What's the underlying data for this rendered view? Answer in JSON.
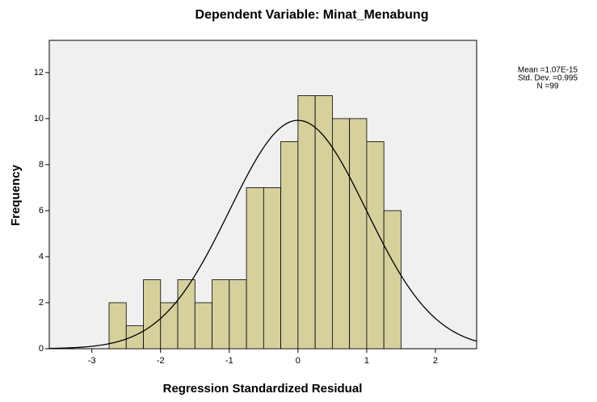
{
  "chart_data": {
    "type": "histogram",
    "title": "Dependent Variable: Minat_Menabung",
    "xlabel": "Regression Standardized Residual",
    "ylabel": "Frequency",
    "bins": [
      -2.75,
      -2.5,
      -2.25,
      -2.0,
      -1.75,
      -1.5,
      -1.25,
      -1.0,
      -0.75,
      -0.5,
      -0.25,
      0.0,
      0.25,
      0.5,
      0.75,
      1.0,
      1.25,
      1.5
    ],
    "values": [
      2,
      1,
      3,
      2,
      3,
      2,
      3,
      3,
      7,
      7,
      9,
      11,
      11,
      10,
      10,
      9,
      6
    ],
    "color": "#d6d09c",
    "xlim": [
      -3.62,
      2.6
    ],
    "ylim": [
      0,
      13.4
    ],
    "xticks": [
      -3,
      -2,
      -1,
      0,
      1,
      2
    ],
    "yticks": [
      0,
      2,
      4,
      6,
      8,
      10,
      12
    ],
    "stats": [
      {
        "value": 1.07e-15,
        "label": "Mean =1.07E-15"
      },
      {
        "value": 0.995,
        "label": "Std. Dev. =0.995"
      },
      {
        "value": 99,
        "label": "N =99"
      }
    ]
  }
}
